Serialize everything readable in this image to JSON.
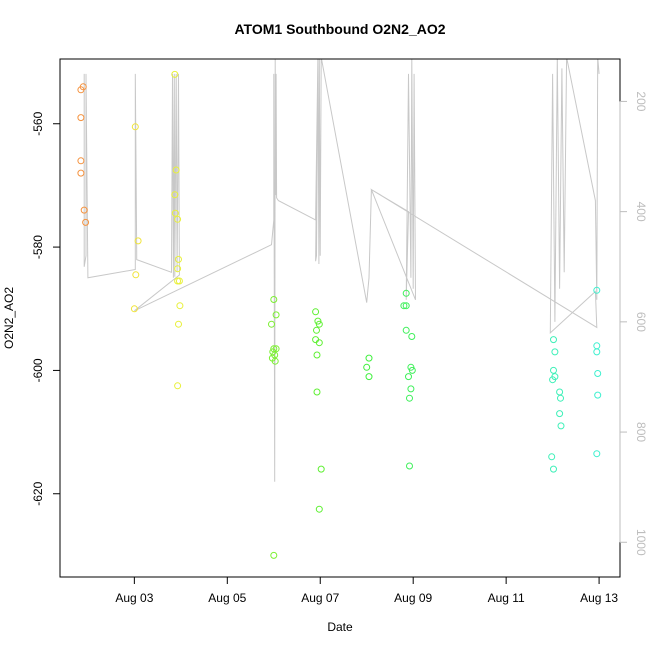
{
  "chart_data": {
    "type": "scatter",
    "title": "ATOM1 Southbound O2N2_AO2",
    "xlabel": "Date",
    "ylabel": "O2N2_AO2",
    "x_ticks": [
      "Aug 03",
      "Aug 05",
      "Aug 07",
      "Aug 09",
      "Aug 11",
      "Aug 13"
    ],
    "x_tick_values": [
      3,
      5,
      7,
      9,
      11,
      13
    ],
    "xlim": [
      1.4,
      13.45
    ],
    "ylim": [
      -633.5,
      -549.5
    ],
    "y_ticks": [
      -560,
      -580,
      -600,
      -620
    ],
    "y2_ticks": [
      200,
      400,
      600,
      800,
      1000
    ],
    "y2lim": [
      1063,
      123
    ],
    "grid": false,
    "point_style": "open-circle",
    "points": [
      {
        "x": 1.85,
        "y": -554.5,
        "color": "#f5923e"
      },
      {
        "x": 1.9,
        "y": -554.0,
        "color": "#f5923e"
      },
      {
        "x": 1.85,
        "y": -559.0,
        "color": "#f5923e"
      },
      {
        "x": 1.85,
        "y": -566.0,
        "color": "#f5923e"
      },
      {
        "x": 1.85,
        "y": -568.0,
        "color": "#f5923e"
      },
      {
        "x": 1.92,
        "y": -574.0,
        "color": "#f5923e"
      },
      {
        "x": 1.95,
        "y": -576.0,
        "color": "#f5923e"
      },
      {
        "x": 3.02,
        "y": -560.5,
        "color": "#f0e43a"
      },
      {
        "x": 3.08,
        "y": -579.0,
        "color": "#f0e43a"
      },
      {
        "x": 3.03,
        "y": -584.5,
        "color": "#f0e43a"
      },
      {
        "x": 3.0,
        "y": -590.0,
        "color": "#f0e43a"
      },
      {
        "x": 3.87,
        "y": -552.0,
        "color": "#e8f03a"
      },
      {
        "x": 3.9,
        "y": -567.5,
        "color": "#e8f03a"
      },
      {
        "x": 3.87,
        "y": -571.5,
        "color": "#e8f03a"
      },
      {
        "x": 3.88,
        "y": -574.5,
        "color": "#e8f03a"
      },
      {
        "x": 3.93,
        "y": -575.5,
        "color": "#e8f03a"
      },
      {
        "x": 3.95,
        "y": -582.0,
        "color": "#e8f03a"
      },
      {
        "x": 3.93,
        "y": -583.5,
        "color": "#e8f03a"
      },
      {
        "x": 3.93,
        "y": -585.5,
        "color": "#e8f03a"
      },
      {
        "x": 3.97,
        "y": -585.5,
        "color": "#e8f03a"
      },
      {
        "x": 3.98,
        "y": -589.5,
        "color": "#e8f03a"
      },
      {
        "x": 3.95,
        "y": -592.5,
        "color": "#e8f03a"
      },
      {
        "x": 3.93,
        "y": -602.5,
        "color": "#e8f03a"
      },
      {
        "x": 6.0,
        "y": -588.5,
        "color": "#7cf032"
      },
      {
        "x": 6.05,
        "y": -591.0,
        "color": "#7cf032"
      },
      {
        "x": 5.95,
        "y": -592.5,
        "color": "#7cf032"
      },
      {
        "x": 6.0,
        "y": -596.5,
        "color": "#7cf032"
      },
      {
        "x": 6.05,
        "y": -596.5,
        "color": "#7cf032"
      },
      {
        "x": 5.98,
        "y": -597.0,
        "color": "#7cf032"
      },
      {
        "x": 6.02,
        "y": -597.5,
        "color": "#7cf032"
      },
      {
        "x": 5.97,
        "y": -598.0,
        "color": "#7cf032"
      },
      {
        "x": 6.03,
        "y": -598.5,
        "color": "#7cf032"
      },
      {
        "x": 6.0,
        "y": -630.0,
        "color": "#7cf032"
      },
      {
        "x": 6.9,
        "y": -590.5,
        "color": "#5ef032"
      },
      {
        "x": 6.95,
        "y": -592.0,
        "color": "#5ef032"
      },
      {
        "x": 6.98,
        "y": -592.5,
        "color": "#5ef032"
      },
      {
        "x": 6.92,
        "y": -593.5,
        "color": "#5ef032"
      },
      {
        "x": 6.9,
        "y": -595.0,
        "color": "#5ef032"
      },
      {
        "x": 6.98,
        "y": -595.5,
        "color": "#5ef032"
      },
      {
        "x": 6.93,
        "y": -597.5,
        "color": "#5ef032"
      },
      {
        "x": 6.93,
        "y": -603.5,
        "color": "#5ef032"
      },
      {
        "x": 7.02,
        "y": -616.0,
        "color": "#5ef032"
      },
      {
        "x": 6.98,
        "y": -622.5,
        "color": "#5ef032"
      },
      {
        "x": 8.05,
        "y": -598.0,
        "color": "#3ef03c"
      },
      {
        "x": 8.0,
        "y": -599.5,
        "color": "#3ef03c"
      },
      {
        "x": 8.05,
        "y": -601.0,
        "color": "#3ef03c"
      },
      {
        "x": 8.85,
        "y": -587.5,
        "color": "#3ef05a"
      },
      {
        "x": 8.8,
        "y": -589.5,
        "color": "#3ef05a"
      },
      {
        "x": 8.85,
        "y": -589.5,
        "color": "#3ef05a"
      },
      {
        "x": 8.85,
        "y": -593.5,
        "color": "#3ef05a"
      },
      {
        "x": 8.97,
        "y": -594.5,
        "color": "#3ef05a"
      },
      {
        "x": 8.95,
        "y": -599.5,
        "color": "#3ef05a"
      },
      {
        "x": 8.98,
        "y": -600.0,
        "color": "#3ef05a"
      },
      {
        "x": 8.9,
        "y": -601.0,
        "color": "#3ef05a"
      },
      {
        "x": 8.95,
        "y": -603.0,
        "color": "#3ef05a"
      },
      {
        "x": 8.92,
        "y": -604.5,
        "color": "#3ef05a"
      },
      {
        "x": 8.92,
        "y": -615.5,
        "color": "#3ef05a"
      },
      {
        "x": 12.02,
        "y": -595.0,
        "color": "#3ef0b8"
      },
      {
        "x": 12.05,
        "y": -597.0,
        "color": "#3ef0b8"
      },
      {
        "x": 12.02,
        "y": -600.0,
        "color": "#3ef0b8"
      },
      {
        "x": 12.05,
        "y": -601.0,
        "color": "#3ef0b8"
      },
      {
        "x": 12.0,
        "y": -601.5,
        "color": "#3ef0b8"
      },
      {
        "x": 12.15,
        "y": -603.5,
        "color": "#3ef0b8"
      },
      {
        "x": 12.17,
        "y": -604.5,
        "color": "#3ef0b8"
      },
      {
        "x": 12.15,
        "y": -607.0,
        "color": "#3ef0b8"
      },
      {
        "x": 12.18,
        "y": -609.0,
        "color": "#3ef0b8"
      },
      {
        "x": 11.98,
        "y": -614.0,
        "color": "#3ef0b8"
      },
      {
        "x": 12.02,
        "y": -616.0,
        "color": "#3ef0b8"
      },
      {
        "x": 12.95,
        "y": -587.0,
        "color": "#3ef0cf"
      },
      {
        "x": 12.95,
        "y": -596.0,
        "color": "#3ef0cf"
      },
      {
        "x": 12.95,
        "y": -597.0,
        "color": "#3ef0cf"
      },
      {
        "x": 12.97,
        "y": -600.5,
        "color": "#3ef0cf"
      },
      {
        "x": 12.97,
        "y": -604.0,
        "color": "#3ef0cf"
      },
      {
        "x": 12.95,
        "y": -613.5,
        "color": "#3ef0cf"
      }
    ],
    "line": {
      "color": "#c8c8c8",
      "x": [
        1.92,
        1.92,
        1.96,
        1.96,
        2.0,
        3.02,
        3.02,
        3.05,
        3.05,
        3.8,
        3.82,
        3.84,
        3.86,
        3.87,
        3.9,
        3.92,
        3.95,
        3.97,
        3.0,
        5.95,
        6.0,
        6.0,
        6.02,
        6.03,
        6.04,
        6.05,
        6.06,
        6.1,
        6.9,
        6.95,
        6.9,
        6.92,
        6.95,
        6.97,
        6.98,
        7.0,
        7.02,
        8.0,
        8.05,
        8.1,
        8.9,
        8.85,
        8.9,
        8.95,
        8.97,
        9.0,
        9.02,
        9.05,
        8.1,
        12.95,
        12.92,
        11.95,
        12.0,
        12.05,
        12.1,
        12.15,
        12.2,
        12.25,
        12.3,
        12.92,
        12.95,
        12.97,
        13.0
      ],
      "y2": [
        150,
        500,
        480,
        150,
        520,
        505,
        150,
        473,
        487,
        510,
        150,
        520,
        150,
        518,
        150,
        510,
        150,
        515,
        580,
        460,
        415,
        150,
        890,
        120,
        370,
        150,
        375,
        380,
        415,
        120,
        490,
        480,
        120,
        495,
        120,
        480,
        120,
        565,
        520,
        360,
        400,
        560,
        150,
        520,
        120,
        540,
        150,
        560,
        360,
        610,
        545,
        620,
        150,
        600,
        120,
        540,
        140,
        510,
        120,
        380,
        560,
        120,
        150
      ]
    }
  }
}
